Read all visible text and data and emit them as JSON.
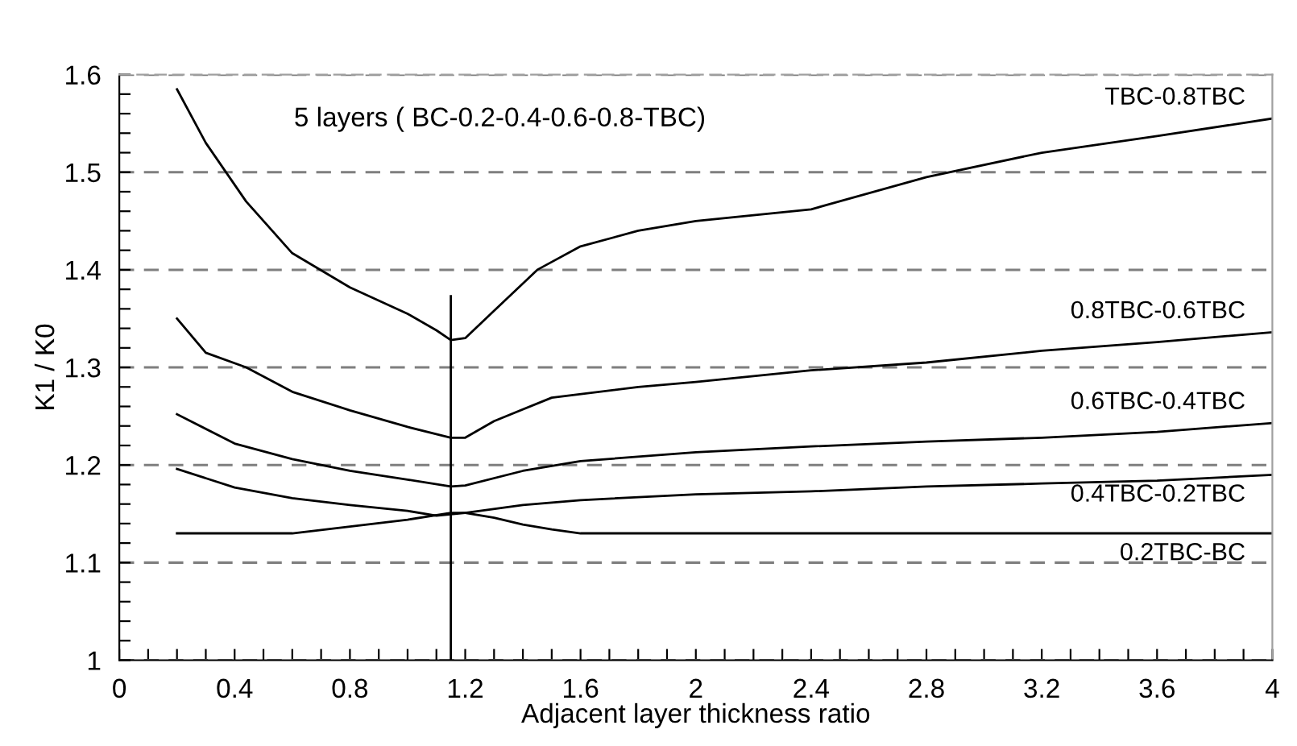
{
  "chart_data": {
    "type": "line",
    "title": "5 layers ( BC-0.2-0.4-0.6-0.8-TBC)",
    "xlabel": "Adjacent layer thickness ratio",
    "ylabel": "K1 / K0",
    "xlim": [
      0,
      4
    ],
    "ylim": [
      1,
      1.6
    ],
    "xticks": [
      0,
      {
        "value": 0.1,
        "label": null
      },
      {
        "value": 0.2,
        "label": null
      },
      {
        "value": 0.3,
        "label": null
      },
      0.4,
      {
        "value": 0.5,
        "label": null
      },
      {
        "value": 0.6,
        "label": null
      },
      {
        "value": 0.7,
        "label": null
      },
      0.8,
      {
        "value": 0.9,
        "label": null
      },
      {
        "value": 1.0,
        "label": null
      },
      {
        "value": 1.1,
        "label": null
      },
      1.2,
      {
        "value": 1.3,
        "label": null
      },
      {
        "value": 1.4,
        "label": null
      },
      {
        "value": 1.5,
        "label": null
      },
      1.6,
      {
        "value": 1.7,
        "label": null
      },
      {
        "value": 1.8,
        "label": null
      },
      {
        "value": 1.9,
        "label": null
      },
      2,
      {
        "value": 2.1,
        "label": null
      },
      {
        "value": 2.2,
        "label": null
      },
      {
        "value": 2.3,
        "label": null
      },
      2.4,
      {
        "value": 2.5,
        "label": null
      },
      {
        "value": 2.6,
        "label": null
      },
      {
        "value": 2.7,
        "label": null
      },
      2.8,
      {
        "value": 2.9,
        "label": null
      },
      {
        "value": 3.0,
        "label": null
      },
      {
        "value": 3.1,
        "label": null
      },
      3.2,
      {
        "value": 3.3,
        "label": null
      },
      {
        "value": 3.4,
        "label": null
      },
      {
        "value": 3.5,
        "label": null
      },
      3.6,
      {
        "value": 3.7,
        "label": null
      },
      {
        "value": 3.8,
        "label": null
      },
      {
        "value": 3.9,
        "label": null
      },
      4
    ],
    "yticks": [
      1,
      {
        "value": 1.02,
        "label": null
      },
      {
        "value": 1.04,
        "label": null
      },
      {
        "value": 1.06,
        "label": null
      },
      {
        "value": 1.08,
        "label": null
      },
      1.1,
      {
        "value": 1.12,
        "label": null
      },
      {
        "value": 1.14,
        "label": null
      },
      {
        "value": 1.16,
        "label": null
      },
      {
        "value": 1.18,
        "label": null
      },
      1.2,
      {
        "value": 1.22,
        "label": null
      },
      {
        "value": 1.24,
        "label": null
      },
      {
        "value": 1.26,
        "label": null
      },
      {
        "value": 1.28,
        "label": null
      },
      1.3,
      {
        "value": 1.32,
        "label": null
      },
      {
        "value": 1.34,
        "label": null
      },
      {
        "value": 1.36,
        "label": null
      },
      {
        "value": 1.38,
        "label": null
      },
      1.4,
      {
        "value": 1.42,
        "label": null
      },
      {
        "value": 1.44,
        "label": null
      },
      {
        "value": 1.46,
        "label": null
      },
      {
        "value": 1.48,
        "label": null
      },
      1.5,
      {
        "value": 1.52,
        "label": null
      },
      {
        "value": 1.54,
        "label": null
      },
      {
        "value": 1.56,
        "label": null
      },
      {
        "value": 1.58,
        "label": null
      },
      1.6
    ],
    "grid": "y",
    "legend": false,
    "marker": "none",
    "line_style": "solid",
    "series": [
      {
        "name": "TBC-0.8TBC",
        "color": "#000000",
        "x": [
          0.2,
          0.3,
          0.44,
          0.6,
          0.8,
          1.0,
          1.1,
          1.15,
          1.2,
          1.3,
          1.45,
          1.6,
          1.8,
          2.0,
          2.4,
          2.8,
          3.2,
          3.6,
          4.0
        ],
        "values": [
          1.585,
          1.53,
          1.47,
          1.417,
          1.382,
          1.355,
          1.338,
          1.328,
          1.33,
          1.358,
          1.4,
          1.424,
          1.44,
          1.45,
          1.462,
          1.495,
          1.52,
          1.537,
          1.555
        ]
      },
      {
        "name": "0.8TBC-0.6TBC",
        "color": "#000000",
        "x": [
          0.2,
          0.3,
          0.44,
          0.6,
          0.8,
          1.0,
          1.15,
          1.2,
          1.3,
          1.5,
          1.8,
          2.0,
          2.4,
          2.8,
          3.2,
          3.6,
          4.0
        ],
        "values": [
          1.35,
          1.315,
          1.3,
          1.275,
          1.256,
          1.239,
          1.228,
          1.228,
          1.245,
          1.269,
          1.28,
          1.285,
          1.297,
          1.305,
          1.317,
          1.326,
          1.336
        ]
      },
      {
        "name": "0.6TBC-0.4TBC",
        "color": "#000000",
        "x": [
          0.2,
          0.4,
          0.6,
          0.8,
          1.0,
          1.15,
          1.2,
          1.4,
          1.6,
          2.0,
          2.4,
          2.8,
          3.2,
          3.6,
          4.0
        ],
        "values": [
          1.252,
          1.222,
          1.206,
          1.194,
          1.185,
          1.178,
          1.179,
          1.194,
          1.204,
          1.213,
          1.219,
          1.224,
          1.228,
          1.234,
          1.243
        ]
      },
      {
        "name": "0.4TBC-0.2TBC",
        "color": "#000000",
        "x": [
          0.2,
          0.4,
          0.6,
          0.8,
          1.0,
          1.1,
          1.2,
          1.4,
          1.6,
          2.0,
          2.4,
          2.8,
          3.2,
          3.6,
          4.0
        ],
        "values": [
          1.196,
          1.177,
          1.166,
          1.159,
          1.153,
          1.148,
          1.151,
          1.159,
          1.164,
          1.17,
          1.173,
          1.178,
          1.181,
          1.184,
          1.19
        ]
      },
      {
        "name": "0.2TBC-BC",
        "color": "#000000",
        "x": [
          0.2,
          0.4,
          0.6,
          0.8,
          1.0,
          1.15,
          1.2,
          1.3,
          1.4,
          1.5,
          1.6,
          2.0,
          3.0,
          4.0
        ],
        "values": [
          1.13,
          1.13,
          1.13,
          1.137,
          1.144,
          1.151,
          1.151,
          1.146,
          1.139,
          1.134,
          1.13,
          1.13,
          1.13,
          1.13
        ]
      },
      {
        "color": "#000000",
        "x": [
          1.15,
          1.15
        ],
        "values": [
          1.0,
          1.373
        ]
      }
    ]
  }
}
